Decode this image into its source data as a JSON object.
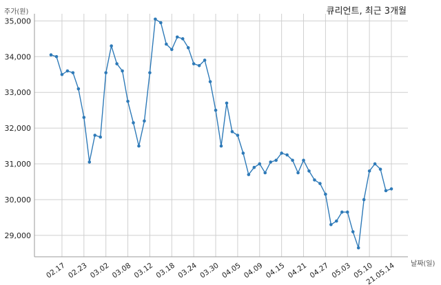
{
  "chart_data": {
    "type": "line",
    "title": "큐리언트, 최근 3개월",
    "xlabel": "날짜(일)",
    "ylabel": "주가(원)",
    "ylim": [
      28400,
      35200
    ],
    "yticks": [
      29000,
      30000,
      31000,
      32000,
      33000,
      34000,
      35000
    ],
    "ytick_labels": [
      "29,000",
      "30,000",
      "31,000",
      "32,000",
      "33,000",
      "34,000",
      "35,000"
    ],
    "grid": true,
    "color": "#2e7ab8",
    "xtick_labels": [
      {
        "index": 2,
        "label": "02.17"
      },
      {
        "index": 6,
        "label": "02.23"
      },
      {
        "index": 10,
        "label": "03.02"
      },
      {
        "index": 14,
        "label": "03.08"
      },
      {
        "index": 18,
        "label": "03.12"
      },
      {
        "index": 22,
        "label": "03.18"
      },
      {
        "index": 26,
        "label": "03.24"
      },
      {
        "index": 30,
        "label": "03.30"
      },
      {
        "index": 34,
        "label": "04.05"
      },
      {
        "index": 38,
        "label": "04.09"
      },
      {
        "index": 42,
        "label": "04.15"
      },
      {
        "index": 46,
        "label": "04.21"
      },
      {
        "index": 50,
        "label": "04.27"
      },
      {
        "index": 54,
        "label": "05.03"
      },
      {
        "index": 58,
        "label": "05.10"
      },
      {
        "index": 62,
        "label": "21.05.14"
      }
    ],
    "values": [
      34050,
      34000,
      33500,
      33600,
      33550,
      33100,
      32300,
      31050,
      31800,
      31750,
      33550,
      34300,
      33800,
      33600,
      32750,
      32150,
      31500,
      32200,
      33550,
      35050,
      34950,
      34350,
      34200,
      34550,
      34500,
      34250,
      33800,
      33750,
      33900,
      33300,
      32500,
      31500,
      32700,
      31900,
      31800,
      31300,
      30700,
      30900,
      31000,
      30750,
      31050,
      31100,
      31300,
      31250,
      31100,
      30750,
      31100,
      30800,
      30550,
      30450,
      30150,
      29300,
      29400,
      29650,
      29650,
      29100,
      28650,
      30000,
      30800,
      31000,
      30850,
      30250,
      30300
    ]
  }
}
